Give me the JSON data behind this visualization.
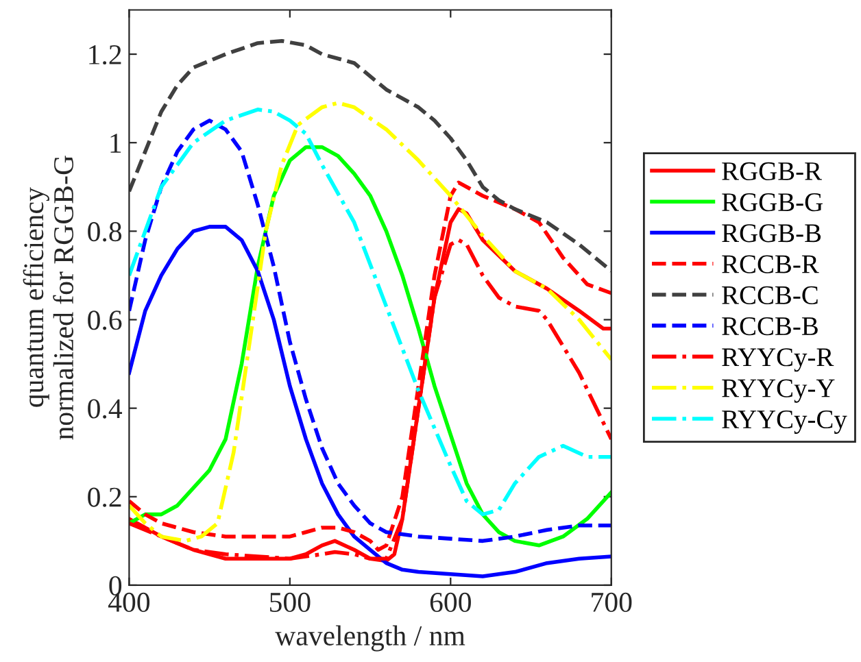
{
  "chart_data": {
    "type": "line",
    "xlabel": "wavelength / nm",
    "ylabel": "quantum efficiency\nnormalized for RGGB-G",
    "xlim": [
      400,
      700
    ],
    "xticks": [
      400,
      500,
      600,
      700
    ],
    "ylim": [
      0,
      1.3
    ],
    "yticks": [
      0,
      0.2,
      0.4,
      0.6,
      0.8,
      1,
      1.2
    ],
    "grid": false,
    "legend": "right",
    "marker": "none",
    "series": [
      {
        "name": "RGGB-R",
        "color": "#ff0000",
        "line_style": "solid",
        "x": [
          400,
          420,
          440,
          460,
          480,
          500,
          510,
          520,
          528,
          540,
          550,
          560,
          565,
          570,
          580,
          590,
          600,
          605,
          610,
          620,
          640,
          660,
          680,
          695,
          700
        ],
        "values": [
          0.15,
          0.11,
          0.08,
          0.06,
          0.06,
          0.06,
          0.07,
          0.09,
          0.1,
          0.08,
          0.06,
          0.055,
          0.07,
          0.15,
          0.4,
          0.65,
          0.82,
          0.85,
          0.84,
          0.78,
          0.71,
          0.67,
          0.62,
          0.58,
          0.58
        ]
      },
      {
        "name": "RGGB-G",
        "color": "#00ff00",
        "line_style": "solid",
        "x": [
          400,
          410,
          420,
          430,
          440,
          450,
          460,
          470,
          480,
          490,
          500,
          510,
          520,
          530,
          540,
          550,
          560,
          570,
          580,
          590,
          600,
          610,
          620,
          630,
          640,
          655,
          670,
          685,
          700
        ],
        "values": [
          0.14,
          0.16,
          0.16,
          0.18,
          0.22,
          0.26,
          0.33,
          0.5,
          0.72,
          0.88,
          0.96,
          0.99,
          0.99,
          0.97,
          0.93,
          0.88,
          0.8,
          0.7,
          0.58,
          0.45,
          0.34,
          0.23,
          0.16,
          0.12,
          0.1,
          0.09,
          0.11,
          0.15,
          0.21
        ]
      },
      {
        "name": "RGGB-B",
        "color": "#0000ff",
        "line_style": "solid",
        "x": [
          400,
          405,
          410,
          420,
          430,
          440,
          450,
          460,
          470,
          480,
          490,
          500,
          510,
          520,
          530,
          540,
          550,
          560,
          570,
          580,
          600,
          620,
          640,
          660,
          680,
          700
        ],
        "values": [
          0.48,
          0.55,
          0.62,
          0.7,
          0.76,
          0.8,
          0.81,
          0.81,
          0.78,
          0.71,
          0.6,
          0.45,
          0.33,
          0.23,
          0.16,
          0.11,
          0.08,
          0.05,
          0.035,
          0.03,
          0.025,
          0.02,
          0.03,
          0.05,
          0.06,
          0.065
        ]
      },
      {
        "name": "RCCB-R",
        "color": "#ff0000",
        "line_style": "dashed",
        "x": [
          400,
          410,
          420,
          440,
          460,
          480,
          500,
          510,
          520,
          530,
          540,
          550,
          555,
          560,
          570,
          580,
          590,
          600,
          605,
          620,
          640,
          655,
          670,
          685,
          700
        ],
        "values": [
          0.19,
          0.16,
          0.14,
          0.12,
          0.11,
          0.11,
          0.11,
          0.12,
          0.13,
          0.13,
          0.12,
          0.1,
          0.08,
          0.09,
          0.2,
          0.45,
          0.7,
          0.88,
          0.91,
          0.88,
          0.85,
          0.82,
          0.74,
          0.68,
          0.66
        ]
      },
      {
        "name": "RCCB-C",
        "color": "#404040",
        "line_style": "dashed",
        "x": [
          400,
          410,
          420,
          430,
          440,
          460,
          480,
          495,
          510,
          520,
          540,
          560,
          580,
          590,
          600,
          610,
          620,
          630,
          640,
          660,
          680,
          700
        ],
        "values": [
          0.89,
          0.98,
          1.07,
          1.13,
          1.17,
          1.2,
          1.225,
          1.23,
          1.22,
          1.2,
          1.18,
          1.12,
          1.08,
          1.05,
          1.01,
          0.96,
          0.9,
          0.87,
          0.85,
          0.82,
          0.77,
          0.71
        ]
      },
      {
        "name": "RCCB-B",
        "color": "#0000ff",
        "line_style": "dashed",
        "x": [
          400,
          410,
          420,
          430,
          440,
          450,
          460,
          470,
          480,
          490,
          500,
          510,
          520,
          530,
          540,
          550,
          560,
          580,
          600,
          620,
          640,
          660,
          680,
          700
        ],
        "values": [
          0.62,
          0.78,
          0.9,
          0.98,
          1.03,
          1.05,
          1.03,
          0.98,
          0.86,
          0.72,
          0.55,
          0.42,
          0.31,
          0.23,
          0.18,
          0.14,
          0.12,
          0.11,
          0.105,
          0.1,
          0.11,
          0.125,
          0.135,
          0.135
        ]
      },
      {
        "name": "RYYCy-R",
        "color": "#ff0000",
        "line_style": "dashdot",
        "x": [
          400,
          420,
          440,
          460,
          480,
          500,
          520,
          528,
          540,
          550,
          560,
          570,
          580,
          590,
          600,
          605,
          610,
          620,
          630,
          640,
          655,
          660,
          680,
          700
        ],
        "values": [
          0.14,
          0.11,
          0.08,
          0.07,
          0.065,
          0.06,
          0.07,
          0.075,
          0.07,
          0.06,
          0.06,
          0.15,
          0.4,
          0.65,
          0.77,
          0.78,
          0.77,
          0.7,
          0.65,
          0.63,
          0.62,
          0.6,
          0.48,
          0.33
        ]
      },
      {
        "name": "RYYCy-Y",
        "color": "#ffff00",
        "line_style": "dashdot",
        "x": [
          400,
          410,
          420,
          435,
          445,
          455,
          465,
          475,
          485,
          495,
          505,
          520,
          530,
          540,
          560,
          580,
          600,
          620,
          640,
          660,
          680,
          700
        ],
        "values": [
          0.18,
          0.14,
          0.11,
          0.1,
          0.11,
          0.14,
          0.3,
          0.55,
          0.8,
          0.95,
          1.04,
          1.08,
          1.09,
          1.08,
          1.03,
          0.96,
          0.88,
          0.79,
          0.71,
          0.67,
          0.6,
          0.51
        ]
      },
      {
        "name": "RYYCy-Cy",
        "color": "#00ffff",
        "line_style": "dashdot",
        "x": [
          400,
          410,
          420,
          440,
          460,
          480,
          490,
          500,
          510,
          520,
          540,
          560,
          580,
          600,
          610,
          620,
          630,
          640,
          655,
          670,
          685,
          700
        ],
        "values": [
          0.7,
          0.8,
          0.9,
          1.0,
          1.05,
          1.075,
          1.07,
          1.05,
          1.02,
          0.95,
          0.82,
          0.63,
          0.44,
          0.27,
          0.19,
          0.16,
          0.17,
          0.23,
          0.29,
          0.315,
          0.29,
          0.29
        ]
      }
    ]
  }
}
